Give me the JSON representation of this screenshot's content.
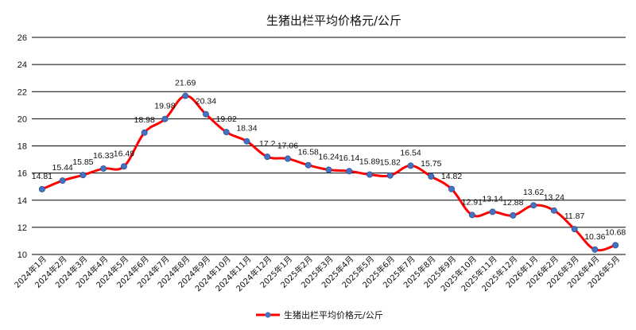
{
  "chart_data": {
    "type": "line",
    "title": "生猪出栏平均价格元/公斤",
    "xlabel": "",
    "ylabel": "",
    "ylim": [
      10,
      26
    ],
    "yticks": [
      10,
      12,
      14,
      16,
      18,
      20,
      22,
      24,
      26
    ],
    "grid": "horizontal",
    "legend_position": "bottom",
    "smooth": true,
    "colors": {
      "line": "#ff0000",
      "marker": "#4472c4",
      "grid": "#000000"
    },
    "categories": [
      "2024年1月",
      "2024年2月",
      "2024年3月",
      "2024年4月",
      "2024年5月",
      "2024年6月",
      "2024年7月",
      "2024年8月",
      "2024年9月",
      "2024年10月",
      "2024年11月",
      "2024年12月",
      "2025年1月",
      "2025年2月",
      "2025年3月",
      "2025年4月",
      "2025年5月",
      "2025年6月",
      "2025年7月",
      "2025年8月",
      "2025年9月",
      "2025年10月",
      "2025年11月",
      "2025年12月",
      "2026年1月",
      "2026年2月",
      "2026年3月",
      "2026年4月",
      "2026年5月"
    ],
    "series": [
      {
        "name": "生猪出栏平均价格元/公斤",
        "values": [
          14.81,
          15.44,
          15.85,
          16.33,
          16.49,
          18.98,
          19.98,
          21.69,
          20.34,
          19.02,
          18.34,
          17.2,
          17.06,
          16.58,
          16.24,
          16.14,
          15.89,
          15.82,
          16.54,
          15.75,
          14.82,
          12.91,
          13.14,
          12.88,
          13.62,
          13.24,
          11.87,
          10.36,
          10.68
        ]
      }
    ]
  }
}
